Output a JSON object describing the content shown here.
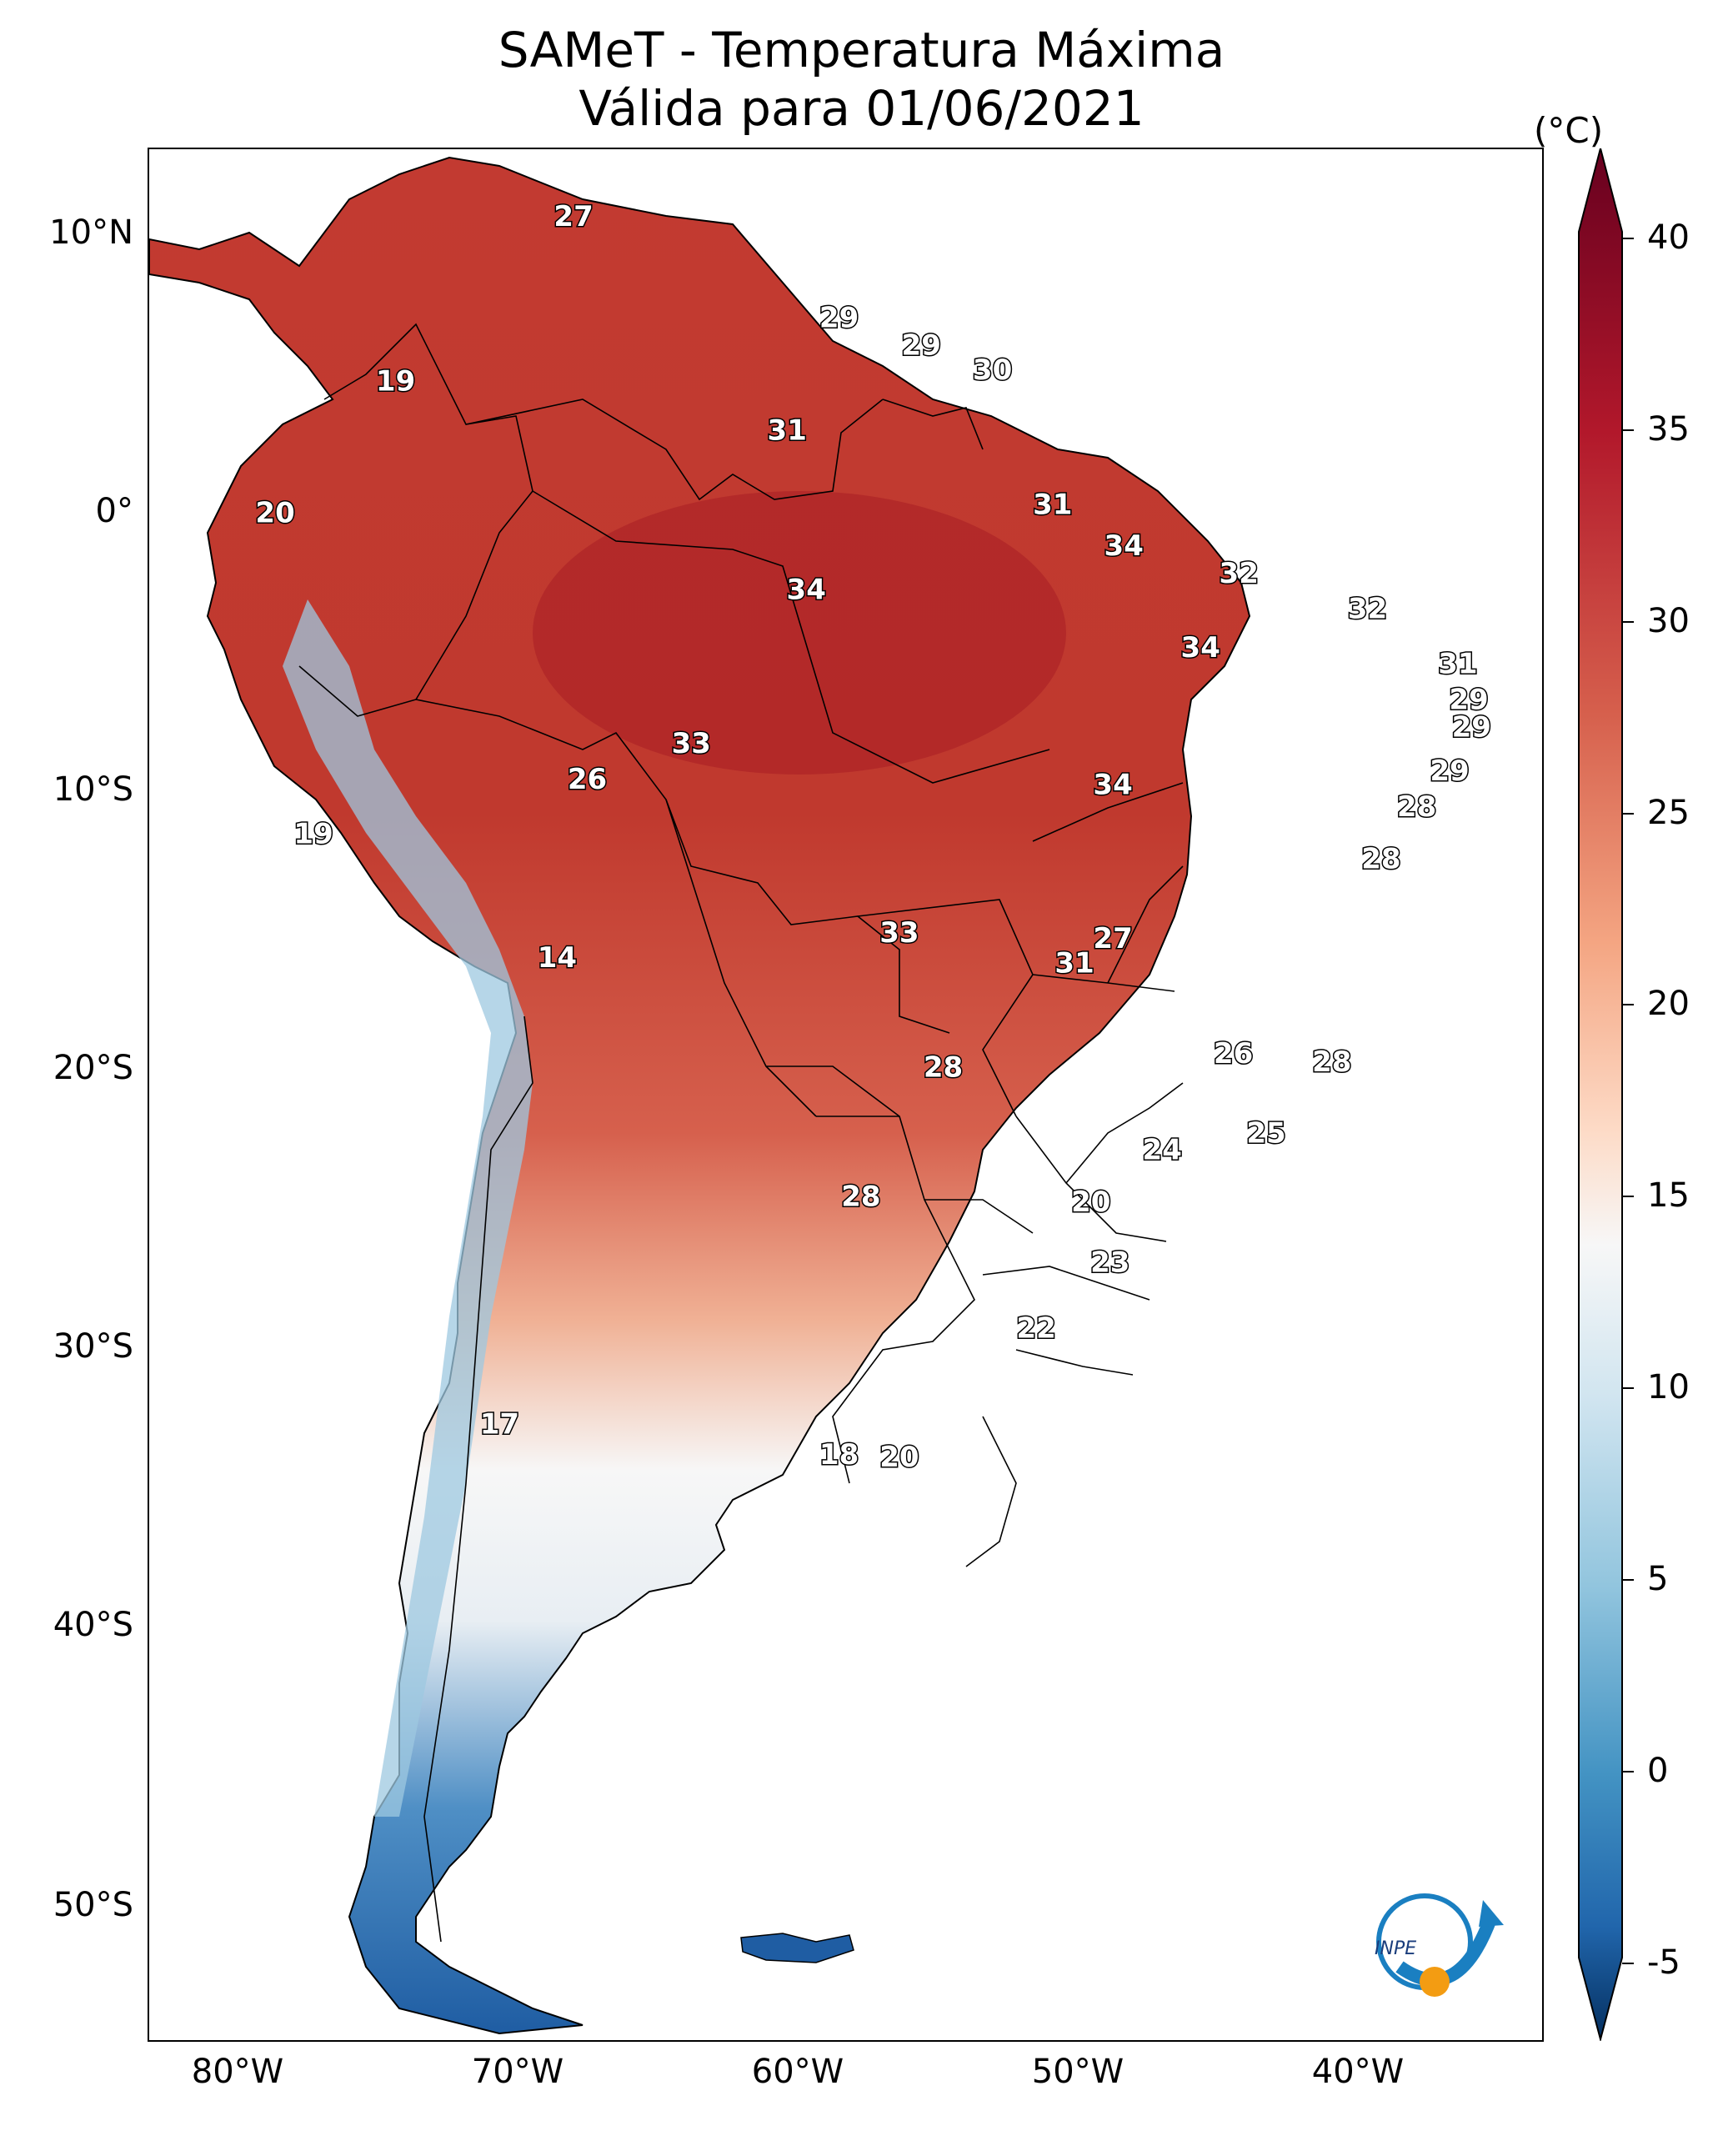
{
  "title": {
    "line1": "SAMeT - Temperatura Máxima",
    "line2": "Válida para 01/06/2021"
  },
  "axes": {
    "lat_labels": [
      "10°N",
      "0°",
      "10°S",
      "20°S",
      "30°S",
      "40°S",
      "50°S"
    ],
    "lon_labels": [
      "80°W",
      "70°W",
      "60°W",
      "50°W",
      "40°W"
    ]
  },
  "colorbar": {
    "unit": "(°C)",
    "ticks": [
      "40",
      "35",
      "30",
      "25",
      "20",
      "15",
      "10",
      "5",
      "0",
      "-5"
    ],
    "min": -5,
    "max": 40
  },
  "temperature_labels": [
    {
      "value": "27",
      "lon": -67.5,
      "lat": 10.5
    },
    {
      "value": "19",
      "lon": -74.0,
      "lat": 4.5
    },
    {
      "value": "29",
      "lon": -57.8,
      "lat": 6.8
    },
    {
      "value": "29",
      "lon": -54.8,
      "lat": 5.8
    },
    {
      "value": "30",
      "lon": -52.2,
      "lat": 4.9
    },
    {
      "value": "31",
      "lon": -59.7,
      "lat": 2.7
    },
    {
      "value": "20",
      "lon": -78.4,
      "lat": -0.3
    },
    {
      "value": "31",
      "lon": -50.0,
      "lat": 0.0
    },
    {
      "value": "34",
      "lon": -47.4,
      "lat": -1.5
    },
    {
      "value": "32",
      "lon": -43.2,
      "lat": -2.5
    },
    {
      "value": "32",
      "lon": -38.5,
      "lat": -3.8
    },
    {
      "value": "34",
      "lon": -59.0,
      "lat": -3.1
    },
    {
      "value": "34",
      "lon": -44.6,
      "lat": -5.2
    },
    {
      "value": "31",
      "lon": -35.2,
      "lat": -5.8
    },
    {
      "value": "29",
      "lon": -34.8,
      "lat": -7.1
    },
    {
      "value": "29",
      "lon": -34.7,
      "lat": -8.1
    },
    {
      "value": "33",
      "lon": -63.2,
      "lat": -8.7
    },
    {
      "value": "29",
      "lon": -35.5,
      "lat": -9.7
    },
    {
      "value": "26",
      "lon": -67.0,
      "lat": -10.0
    },
    {
      "value": "34",
      "lon": -47.8,
      "lat": -10.2
    },
    {
      "value": "28",
      "lon": -36.7,
      "lat": -11.0
    },
    {
      "value": "19",
      "lon": -77.0,
      "lat": -12.0
    },
    {
      "value": "28",
      "lon": -38.0,
      "lat": -12.9
    },
    {
      "value": "14",
      "lon": -68.1,
      "lat": -16.5
    },
    {
      "value": "33",
      "lon": -55.6,
      "lat": -15.6
    },
    {
      "value": "27",
      "lon": -47.8,
      "lat": -15.8
    },
    {
      "value": "31",
      "lon": -49.2,
      "lat": -16.7
    },
    {
      "value": "26",
      "lon": -43.4,
      "lat": -20.0
    },
    {
      "value": "28",
      "lon": -39.8,
      "lat": -20.3
    },
    {
      "value": "28",
      "lon": -54.0,
      "lat": -20.5
    },
    {
      "value": "25",
      "lon": -42.2,
      "lat": -22.9
    },
    {
      "value": "24",
      "lon": -46.0,
      "lat": -23.5
    },
    {
      "value": "28",
      "lon": -57.0,
      "lat": -25.2
    },
    {
      "value": "20",
      "lon": -48.6,
      "lat": -25.4
    },
    {
      "value": "23",
      "lon": -47.9,
      "lat": -27.6
    },
    {
      "value": "22",
      "lon": -50.6,
      "lat": -30.0
    },
    {
      "value": "17",
      "lon": -70.2,
      "lat": -33.5
    },
    {
      "value": "18",
      "lon": -57.8,
      "lat": -34.6
    },
    {
      "value": "20",
      "lon": -55.6,
      "lat": -34.7
    }
  ]
}
